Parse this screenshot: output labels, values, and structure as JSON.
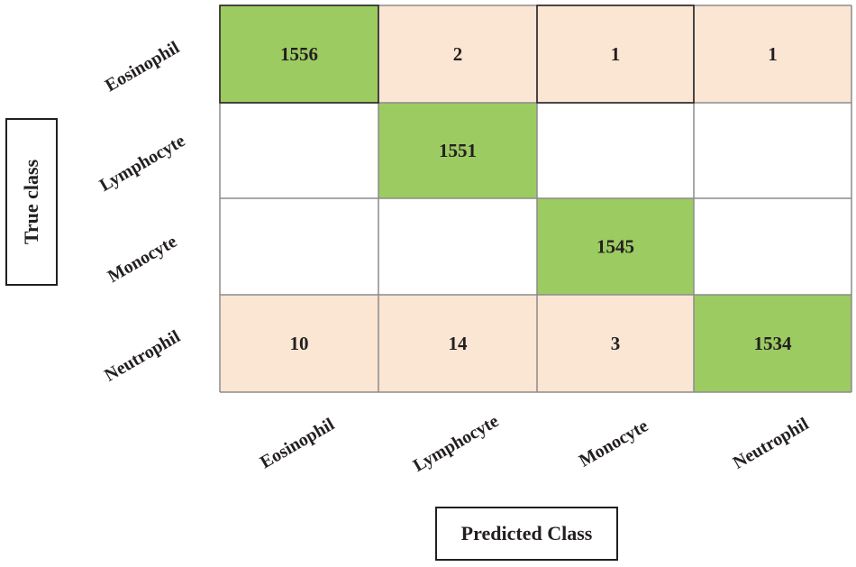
{
  "chart_data": {
    "type": "heatmap",
    "title": "",
    "xlabel": "Predicted Class",
    "ylabel": "True class",
    "x_categories": [
      "Eosinophil",
      "Lymphocyte",
      "Monocyte",
      "Neutrophil"
    ],
    "y_categories": [
      "Eosinophil",
      "Lymphocyte",
      "Monocyte",
      "Neutrophil"
    ],
    "values": [
      [
        1556,
        2,
        1,
        1
      ],
      [
        null,
        1551,
        null,
        null
      ],
      [
        null,
        null,
        1545,
        null
      ],
      [
        10,
        14,
        3,
        1534
      ]
    ],
    "colors": {
      "diagonal": "#9ccb62",
      "off_diagonal_error": "#fbe5d3",
      "empty": "#ffffff",
      "grid": "#8c8c8c",
      "text": "#231f20"
    }
  }
}
